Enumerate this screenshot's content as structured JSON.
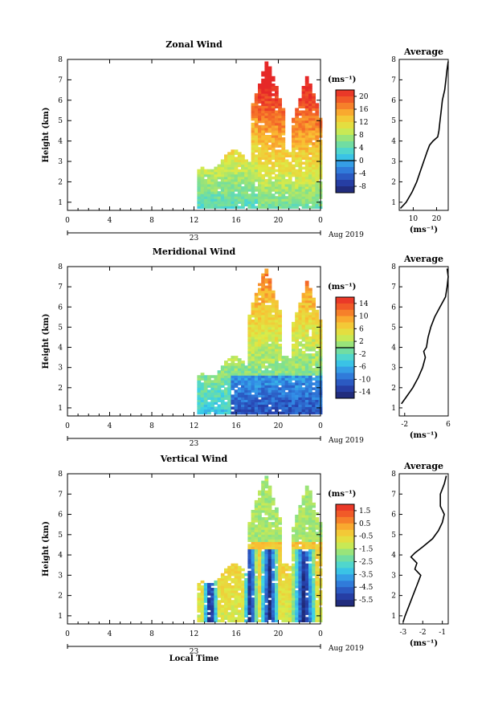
{
  "chart_data": [
    {
      "type": "heatmap",
      "title": "Zonal Wind",
      "ylabel": "Height (km)",
      "xlabel": "",
      "x_ticks": [
        "0",
        "4",
        "8",
        "12",
        "16",
        "20",
        "0"
      ],
      "y_ticks": [
        "1",
        "2",
        "3",
        "4",
        "5",
        "6",
        "7",
        "8"
      ],
      "xlim": [
        0,
        24
      ],
      "ylim": [
        0.6,
        8.0
      ],
      "date_day": "23",
      "date_month": "Aug 2019",
      "colorbar": {
        "unit": "(ms⁻¹)",
        "ticks": [
          "20",
          "16",
          "12",
          "8",
          "4",
          "0",
          "-4",
          "-8"
        ],
        "range": [
          -10,
          22
        ],
        "zero_line": 0
      },
      "field": {
        "type": "zonal",
        "start_hour": 12.3,
        "peaks": [
          {
            "x": 18.8,
            "top": 8.0
          },
          {
            "x": 22.6,
            "top": 7.2
          }
        ]
      },
      "profile": {
        "title": "Average",
        "xlabel": "(ms⁻¹)",
        "x_ticks": [
          "10",
          "20"
        ],
        "xlim": [
          4,
          25
        ],
        "height": [
          0.7,
          1.0,
          1.5,
          2.0,
          2.5,
          3.0,
          3.5,
          3.8,
          4.0,
          4.2,
          4.5,
          5.0,
          5.5,
          6.0,
          6.5,
          7.0,
          7.5,
          7.9
        ],
        "value": [
          4.5,
          7.0,
          9.5,
          11.5,
          13.0,
          14.5,
          16.0,
          17.0,
          18.5,
          20.5,
          21.0,
          21.5,
          22.0,
          22.5,
          23.5,
          24.0,
          24.5,
          25.0
        ]
      }
    },
    {
      "type": "heatmap",
      "title": "Meridional Wind",
      "ylabel": "Height (km)",
      "xlabel": "",
      "x_ticks": [
        "0",
        "4",
        "8",
        "12",
        "16",
        "20",
        "0"
      ],
      "y_ticks": [
        "1",
        "2",
        "3",
        "4",
        "5",
        "6",
        "7",
        "8"
      ],
      "xlim": [
        0,
        24
      ],
      "ylim": [
        0.6,
        8.0
      ],
      "date_day": "23",
      "date_month": "Aug 2019",
      "colorbar": {
        "unit": "(ms⁻¹)",
        "ticks": [
          "14",
          "10",
          "6",
          "2",
          "-2",
          "-6",
          "-10",
          "-14"
        ],
        "range": [
          -16,
          16
        ],
        "zero_line": 0
      },
      "field": {
        "type": "meridional",
        "start_hour": 12.3,
        "peaks": [
          {
            "x": 18.6,
            "top": 8.0
          },
          {
            "x": 22.6,
            "top": 7.3
          }
        ]
      },
      "profile": {
        "title": "Average",
        "xlabel": "(ms⁻¹)",
        "x_ticks": [
          "-2",
          "6"
        ],
        "xlim": [
          -3,
          6
        ],
        "height": [
          1.2,
          1.5,
          2.0,
          2.5,
          3.0,
          3.5,
          3.8,
          4.0,
          4.5,
          5.0,
          5.5,
          6.0,
          6.5,
          7.0,
          7.5,
          7.9
        ],
        "value": [
          -2.6,
          -1.8,
          -0.5,
          0.5,
          1.3,
          1.8,
          1.5,
          2.0,
          2.3,
          2.8,
          3.5,
          4.5,
          5.5,
          5.8,
          6.0,
          5.8
        ]
      }
    },
    {
      "type": "heatmap",
      "title": "Vertical Wind",
      "ylabel": "Height (km)",
      "xlabel": "Local Time",
      "x_ticks": [
        "0",
        "4",
        "8",
        "12",
        "16",
        "20",
        "0"
      ],
      "y_ticks": [
        "1",
        "2",
        "3",
        "4",
        "5",
        "6",
        "7",
        "8"
      ],
      "xlim": [
        0,
        24
      ],
      "ylim": [
        0.6,
        8.0
      ],
      "date_day": "23",
      "date_month": "Aug 2019",
      "colorbar": {
        "unit": "(ms⁻¹)",
        "ticks": [
          "1.5",
          "0.5",
          "-0.5",
          "-1.5",
          "-2.5",
          "-3.5",
          "-4.5",
          "-5.5"
        ],
        "range": [
          -6,
          2
        ],
        "zero_line": null
      },
      "field": {
        "type": "vertical",
        "start_hour": 12.3,
        "peaks": [
          {
            "x": 18.6,
            "top": 8.0
          },
          {
            "x": 22.6,
            "top": 7.5
          }
        ]
      },
      "profile": {
        "title": "Average",
        "xlabel": "(ms⁻¹)",
        "x_ticks": [
          "-3",
          "-2",
          "-1"
        ],
        "xlim": [
          -3.2,
          -0.7
        ],
        "height": [
          0.7,
          1.0,
          1.5,
          2.0,
          2.5,
          3.0,
          3.3,
          3.6,
          3.9,
          4.1,
          4.4,
          4.8,
          5.2,
          5.6,
          6.0,
          6.4,
          7.0,
          7.5,
          7.9
        ],
        "value": [
          -3.0,
          -2.9,
          -2.7,
          -2.5,
          -2.3,
          -2.1,
          -2.4,
          -2.3,
          -2.6,
          -2.4,
          -2.0,
          -1.5,
          -1.2,
          -1.0,
          -0.9,
          -1.1,
          -1.1,
          -0.9,
          -0.8
        ]
      }
    }
  ]
}
